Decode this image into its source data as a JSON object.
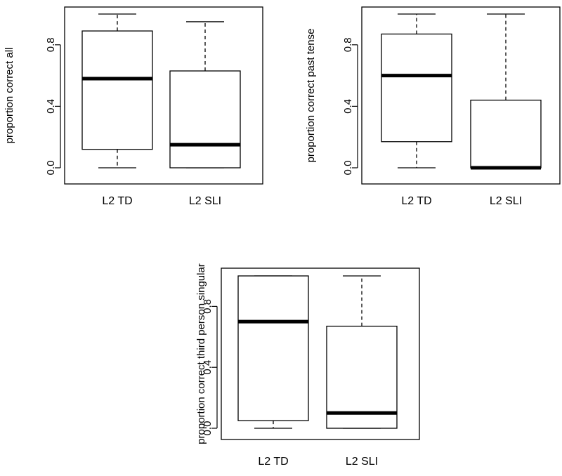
{
  "chart_data": [
    {
      "type": "boxplot",
      "ylabel": "proportion correct all",
      "ylim": [
        0,
        1
      ],
      "yticks": [
        0.0,
        0.4,
        0.8
      ],
      "ytick_labels": [
        "0.0",
        "0.4",
        "0.8"
      ],
      "categories": [
        "L2 TD",
        "L2 SLI"
      ],
      "boxes": [
        {
          "category": "L2 TD",
          "whisker_low": 0.0,
          "q1": 0.12,
          "median": 0.58,
          "q3": 0.89,
          "whisker_high": 1.0
        },
        {
          "category": "L2 SLI",
          "whisker_low": 0.0,
          "q1": 0.0,
          "median": 0.15,
          "q3": 0.63,
          "whisker_high": 0.95
        }
      ]
    },
    {
      "type": "boxplot",
      "ylabel": "proportion correct past tense",
      "ylim": [
        0,
        1
      ],
      "yticks": [
        0.0,
        0.4,
        0.8
      ],
      "ytick_labels": [
        "0.0",
        "0.4",
        "0.8"
      ],
      "categories": [
        "L2 TD",
        "L2 SLI"
      ],
      "boxes": [
        {
          "category": "L2 TD",
          "whisker_low": 0.0,
          "q1": 0.17,
          "median": 0.6,
          "q3": 0.87,
          "whisker_high": 1.0
        },
        {
          "category": "L2 SLI",
          "whisker_low": 0.0,
          "q1": 0.0,
          "median": 0.0,
          "q3": 0.44,
          "whisker_high": 1.0
        }
      ]
    },
    {
      "type": "boxplot",
      "ylabel": "proportion correct third person singular",
      "ylim": [
        0,
        1
      ],
      "yticks": [
        0.0,
        0.4,
        0.8
      ],
      "ytick_labels": [
        "0.0",
        "0.4",
        "0.8"
      ],
      "categories": [
        "L2 TD",
        "L2 SLI"
      ],
      "boxes": [
        {
          "category": "L2 TD",
          "whisker_low": 0.0,
          "q1": 0.05,
          "median": 0.7,
          "q3": 1.0,
          "whisker_high": 1.0
        },
        {
          "category": "L2 SLI",
          "whisker_low": 0.0,
          "q1": 0.0,
          "median": 0.1,
          "q3": 0.67,
          "whisker_high": 1.0
        }
      ]
    }
  ]
}
